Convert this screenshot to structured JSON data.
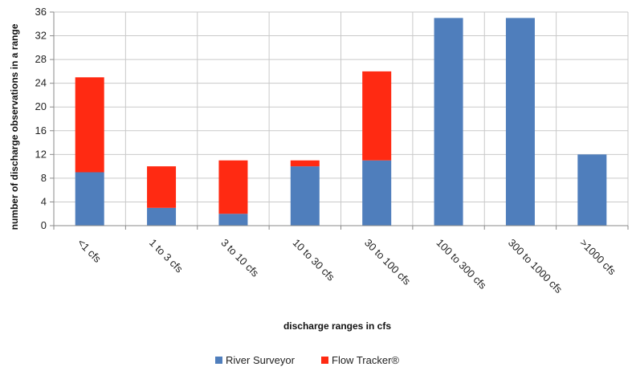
{
  "chart_data": {
    "type": "bar",
    "stacked": true,
    "categories": [
      "<1 cfs",
      "1 to 3 cfs",
      "3 to 10 cfs",
      "10 to 30 cfs",
      "30 to 100 cfs",
      "100 to 300 cfs",
      "300 to 1000 cfs",
      ">1000 cfs"
    ],
    "series": [
      {
        "name": "River Surveyor",
        "color": "#4F7EBC",
        "values": [
          9,
          3,
          2,
          10,
          11,
          35,
          35,
          12
        ]
      },
      {
        "name": "Flow Tracker®",
        "color": "#FF2A12",
        "values": [
          16,
          7,
          9,
          1,
          15,
          0,
          0,
          0
        ]
      }
    ],
    "xlabel": "discharge ranges in cfs",
    "ylabel": "number of discharge observations in a range",
    "ylim": [
      0,
      36
    ],
    "yticks": [
      0,
      4,
      8,
      12,
      16,
      20,
      24,
      28,
      32,
      36
    ],
    "grid": true,
    "legend": "bottom"
  }
}
